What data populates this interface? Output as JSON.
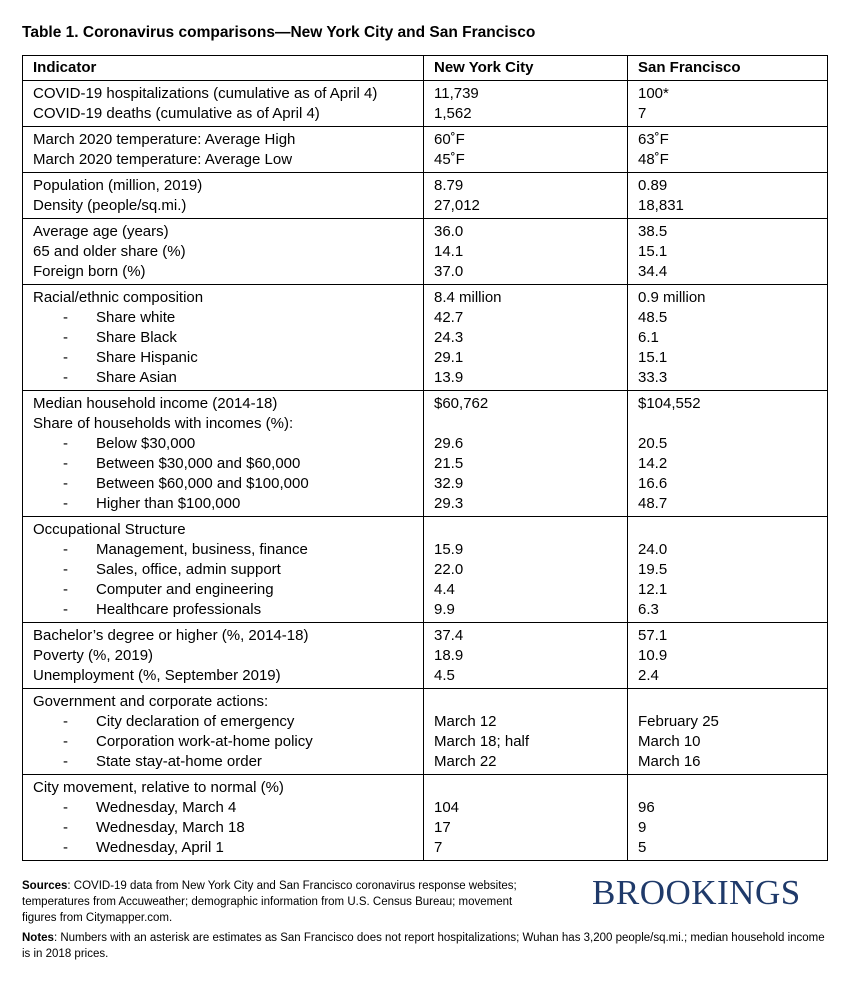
{
  "header": {
    "title": "Table 1. Coronavirus comparisons—New York City and San Francisco"
  },
  "table": {
    "columns": [
      "Indicator",
      "New York City",
      "San Francisco"
    ],
    "groups": [
      [
        {
          "label": "COVID-19 hospitalizations (cumulative as of April 4)",
          "nyc": "11,739",
          "sf": "100*"
        },
        {
          "label": "COVID-19 deaths (cumulative as of April 4)",
          "nyc": "1,562",
          "sf": "7"
        }
      ],
      [
        {
          "label": "March 2020 temperature: Average High",
          "nyc": "60˚F",
          "sf": "63˚F"
        },
        {
          "label": "March 2020 temperature: Average Low",
          "nyc": "45˚F",
          "sf": "48˚F"
        }
      ],
      [
        {
          "label": "Population (million, 2019)",
          "nyc": "8.79",
          "sf": "0.89"
        },
        {
          "label": "Density (people/sq.mi.)",
          "nyc": "27,012",
          "sf": "18,831"
        }
      ],
      [
        {
          "label": "Average age (years)",
          "nyc": "36.0",
          "sf": "38.5"
        },
        {
          "label": "65 and older share (%)",
          "nyc": "14.1",
          "sf": "15.1"
        },
        {
          "label": "Foreign born (%)",
          "nyc": "37.0",
          "sf": "34.4"
        }
      ],
      [
        {
          "label": "Racial/ethnic composition",
          "nyc": "8.4 million",
          "sf": "0.9 million"
        },
        {
          "label": "Share white",
          "nyc": "42.7",
          "sf": "48.5",
          "sub": true
        },
        {
          "label": "Share Black",
          "nyc": "24.3",
          "sf": "6.1",
          "sub": true
        },
        {
          "label": "Share Hispanic",
          "nyc": "29.1",
          "sf": "15.1",
          "sub": true
        },
        {
          "label": "Share Asian",
          "nyc": "13.9",
          "sf": "33.3",
          "sub": true
        }
      ],
      [
        {
          "label": "Median household income (2014-18)",
          "nyc": "$60,762",
          "sf": "$104,552"
        },
        {
          "label": "Share of households with incomes (%):"
        },
        {
          "label": "Below $30,000",
          "nyc": "29.6",
          "sf": "20.5",
          "sub": true
        },
        {
          "label": "Between $30,000 and $60,000",
          "nyc": "21.5",
          "sf": "14.2",
          "sub": true
        },
        {
          "label": "Between $60,000 and $100,000",
          "nyc": "32.9",
          "sf": "16.6",
          "sub": true
        },
        {
          "label": "Higher than $100,000",
          "nyc": "29.3",
          "sf": "48.7",
          "sub": true
        }
      ],
      [
        {
          "label": "Occupational Structure"
        },
        {
          "label": "Management, business, finance",
          "nyc": "15.9",
          "sf": "24.0",
          "sub": true
        },
        {
          "label": "Sales, office, admin support",
          "nyc": "22.0",
          "sf": "19.5",
          "sub": true
        },
        {
          "label": "Computer and engineering",
          "nyc": "4.4",
          "sf": "12.1",
          "sub": true
        },
        {
          "label": "Healthcare professionals",
          "nyc": "9.9",
          "sf": "6.3",
          "sub": true
        }
      ],
      [
        {
          "label": "Bachelor’s degree or higher (%, 2014-18)",
          "nyc": "37.4",
          "sf": "57.1"
        },
        {
          "label": "Poverty (%, 2019)",
          "nyc": "18.9",
          "sf": "10.9"
        },
        {
          "label": "Unemployment (%, September 2019)",
          "nyc": "4.5",
          "sf": "2.4"
        }
      ],
      [
        {
          "label": "Government and corporate actions:"
        },
        {
          "label": "City declaration of emergency",
          "nyc": "March 12",
          "sf": "February 25",
          "sub": true
        },
        {
          "label": "Corporation work-at-home policy",
          "nyc": "March 18; half",
          "sf": "March 10",
          "sub": true
        },
        {
          "label": "State stay-at-home order",
          "nyc": "March 22",
          "sf": "March 16",
          "sub": true
        }
      ],
      [
        {
          "label": "City movement, relative to normal (%)"
        },
        {
          "label": "Wednesday, March 4",
          "nyc": "104",
          "sf": "96",
          "sub": true
        },
        {
          "label": "Wednesday, March 18",
          "nyc": "17",
          "sf": "9",
          "sub": true
        },
        {
          "label": "Wednesday, April 1",
          "nyc": "7",
          "sf": "5",
          "sub": true
        }
      ]
    ]
  },
  "footer": {
    "sources": {
      "label": "Sources",
      "text": ": COVID-19 data from New York City and San Francisco coronavirus response websites; temperatures from Accuweather; demographic information from U.S. Census Bureau; movement figures from Citymapper.com."
    },
    "notes": {
      "label": "Notes",
      "text": ": Numbers with an asterisk are estimates as San Francisco does not report hospitalizations; Wuhan has 3,200 people/sq.mi.; median household income is in 2018 prices."
    },
    "logo": "BROOKINGS"
  }
}
